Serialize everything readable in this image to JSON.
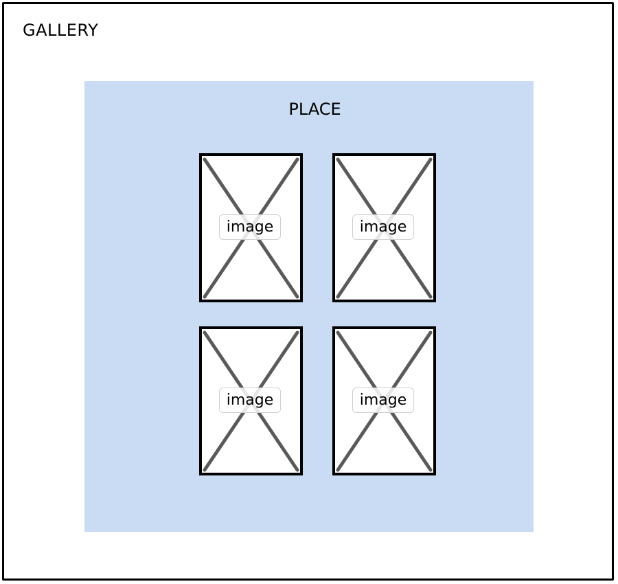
{
  "gallery": {
    "title": "GALLERY"
  },
  "place": {
    "title": "PLACE",
    "background_color": "#c9dcf4",
    "images": [
      {
        "label": "image"
      },
      {
        "label": "image"
      },
      {
        "label": "image"
      },
      {
        "label": "image"
      }
    ]
  }
}
